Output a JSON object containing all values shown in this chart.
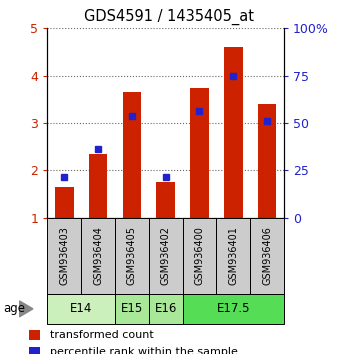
{
  "title": "GDS4591 / 1435405_at",
  "samples": [
    "GSM936403",
    "GSM936404",
    "GSM936405",
    "GSM936402",
    "GSM936400",
    "GSM936401",
    "GSM936406"
  ],
  "red_values": [
    1.65,
    2.35,
    3.65,
    1.75,
    3.75,
    4.6,
    3.4
  ],
  "blue_values": [
    1.85,
    2.45,
    3.15,
    1.85,
    3.25,
    4.0,
    3.05
  ],
  "ylim_left": [
    1,
    5
  ],
  "yticks_left": [
    1,
    2,
    3,
    4,
    5
  ],
  "yticklabels_right": [
    "0",
    "25",
    "50",
    "75",
    "100%"
  ],
  "age_groups": [
    {
      "label": "E14",
      "samples": [
        0,
        1
      ],
      "color": "#ccf0bb"
    },
    {
      "label": "E15",
      "samples": [
        2
      ],
      "color": "#aae899"
    },
    {
      "label": "E16",
      "samples": [
        3
      ],
      "color": "#aae899"
    },
    {
      "label": "E17.5",
      "samples": [
        4,
        5,
        6
      ],
      "color": "#55dd55"
    }
  ],
  "bar_color": "#cc2200",
  "dot_color": "#2222cc",
  "bar_width": 0.55,
  "legend_red": "transformed count",
  "legend_blue": "percentile rank within the sample",
  "age_label": "age",
  "sample_bg": "#cccccc"
}
